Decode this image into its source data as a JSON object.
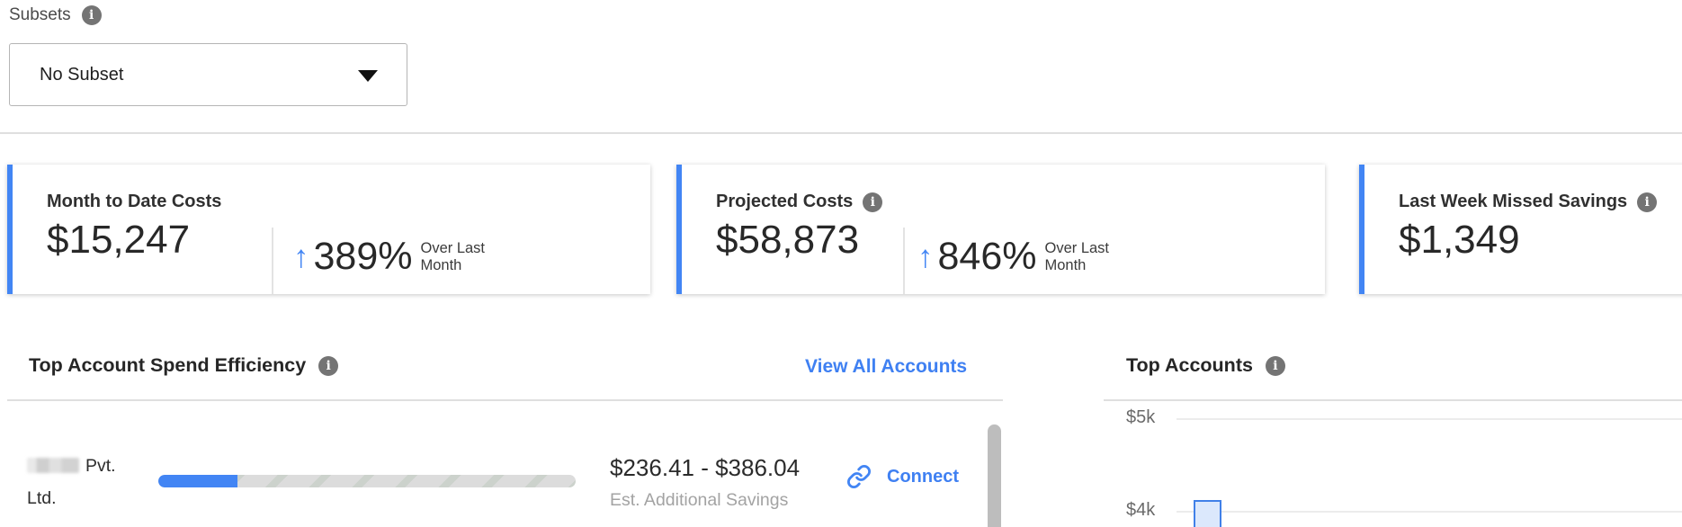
{
  "colors": {
    "accent": "#4285f4",
    "info_icon_bg": "#747474"
  },
  "icons": {
    "info_glyph": "i",
    "up_arrow": "↑",
    "dropdown_caret": "triangle-down-css-shape",
    "connect_link": "chain-link-svg"
  },
  "subsets": {
    "label": "Subsets",
    "selected_option": "No Subset"
  },
  "summary_cards": [
    {
      "title": "Month to Date Costs",
      "value": "$15,247",
      "delta_value": "389%",
      "delta_note": "Over Last Month",
      "has_info_icon": false
    },
    {
      "title": "Projected Costs",
      "value": "$58,873",
      "delta_value": "846%",
      "delta_note": "Over Last Month",
      "has_info_icon": true
    },
    {
      "title": "Last Week Missed Savings",
      "value": "$1,349",
      "has_info_icon": true
    }
  ],
  "spend_efficiency": {
    "title": "Top Account Spend Efficiency",
    "view_all_label": "View All Accounts",
    "rows": [
      {
        "account_name_visible": "Pvt. Ltd.",
        "account_name_redacted": true,
        "progress_percent": 19,
        "savings_range": "$236.41 - $386.04",
        "savings_caption": "Est. Additional Savings",
        "action_label": "Connect"
      }
    ]
  },
  "top_accounts": {
    "title": "Top Accounts",
    "chart_data": {
      "type": "bar",
      "y_tick_labels": [
        "$5k",
        "$4k"
      ],
      "y_tick_values": [
        5000,
        4000
      ],
      "grid": true,
      "bars_visible": [
        {
          "x_index": 0,
          "value_estimate": 4100
        }
      ],
      "clipped_at_bottom": true
    }
  }
}
